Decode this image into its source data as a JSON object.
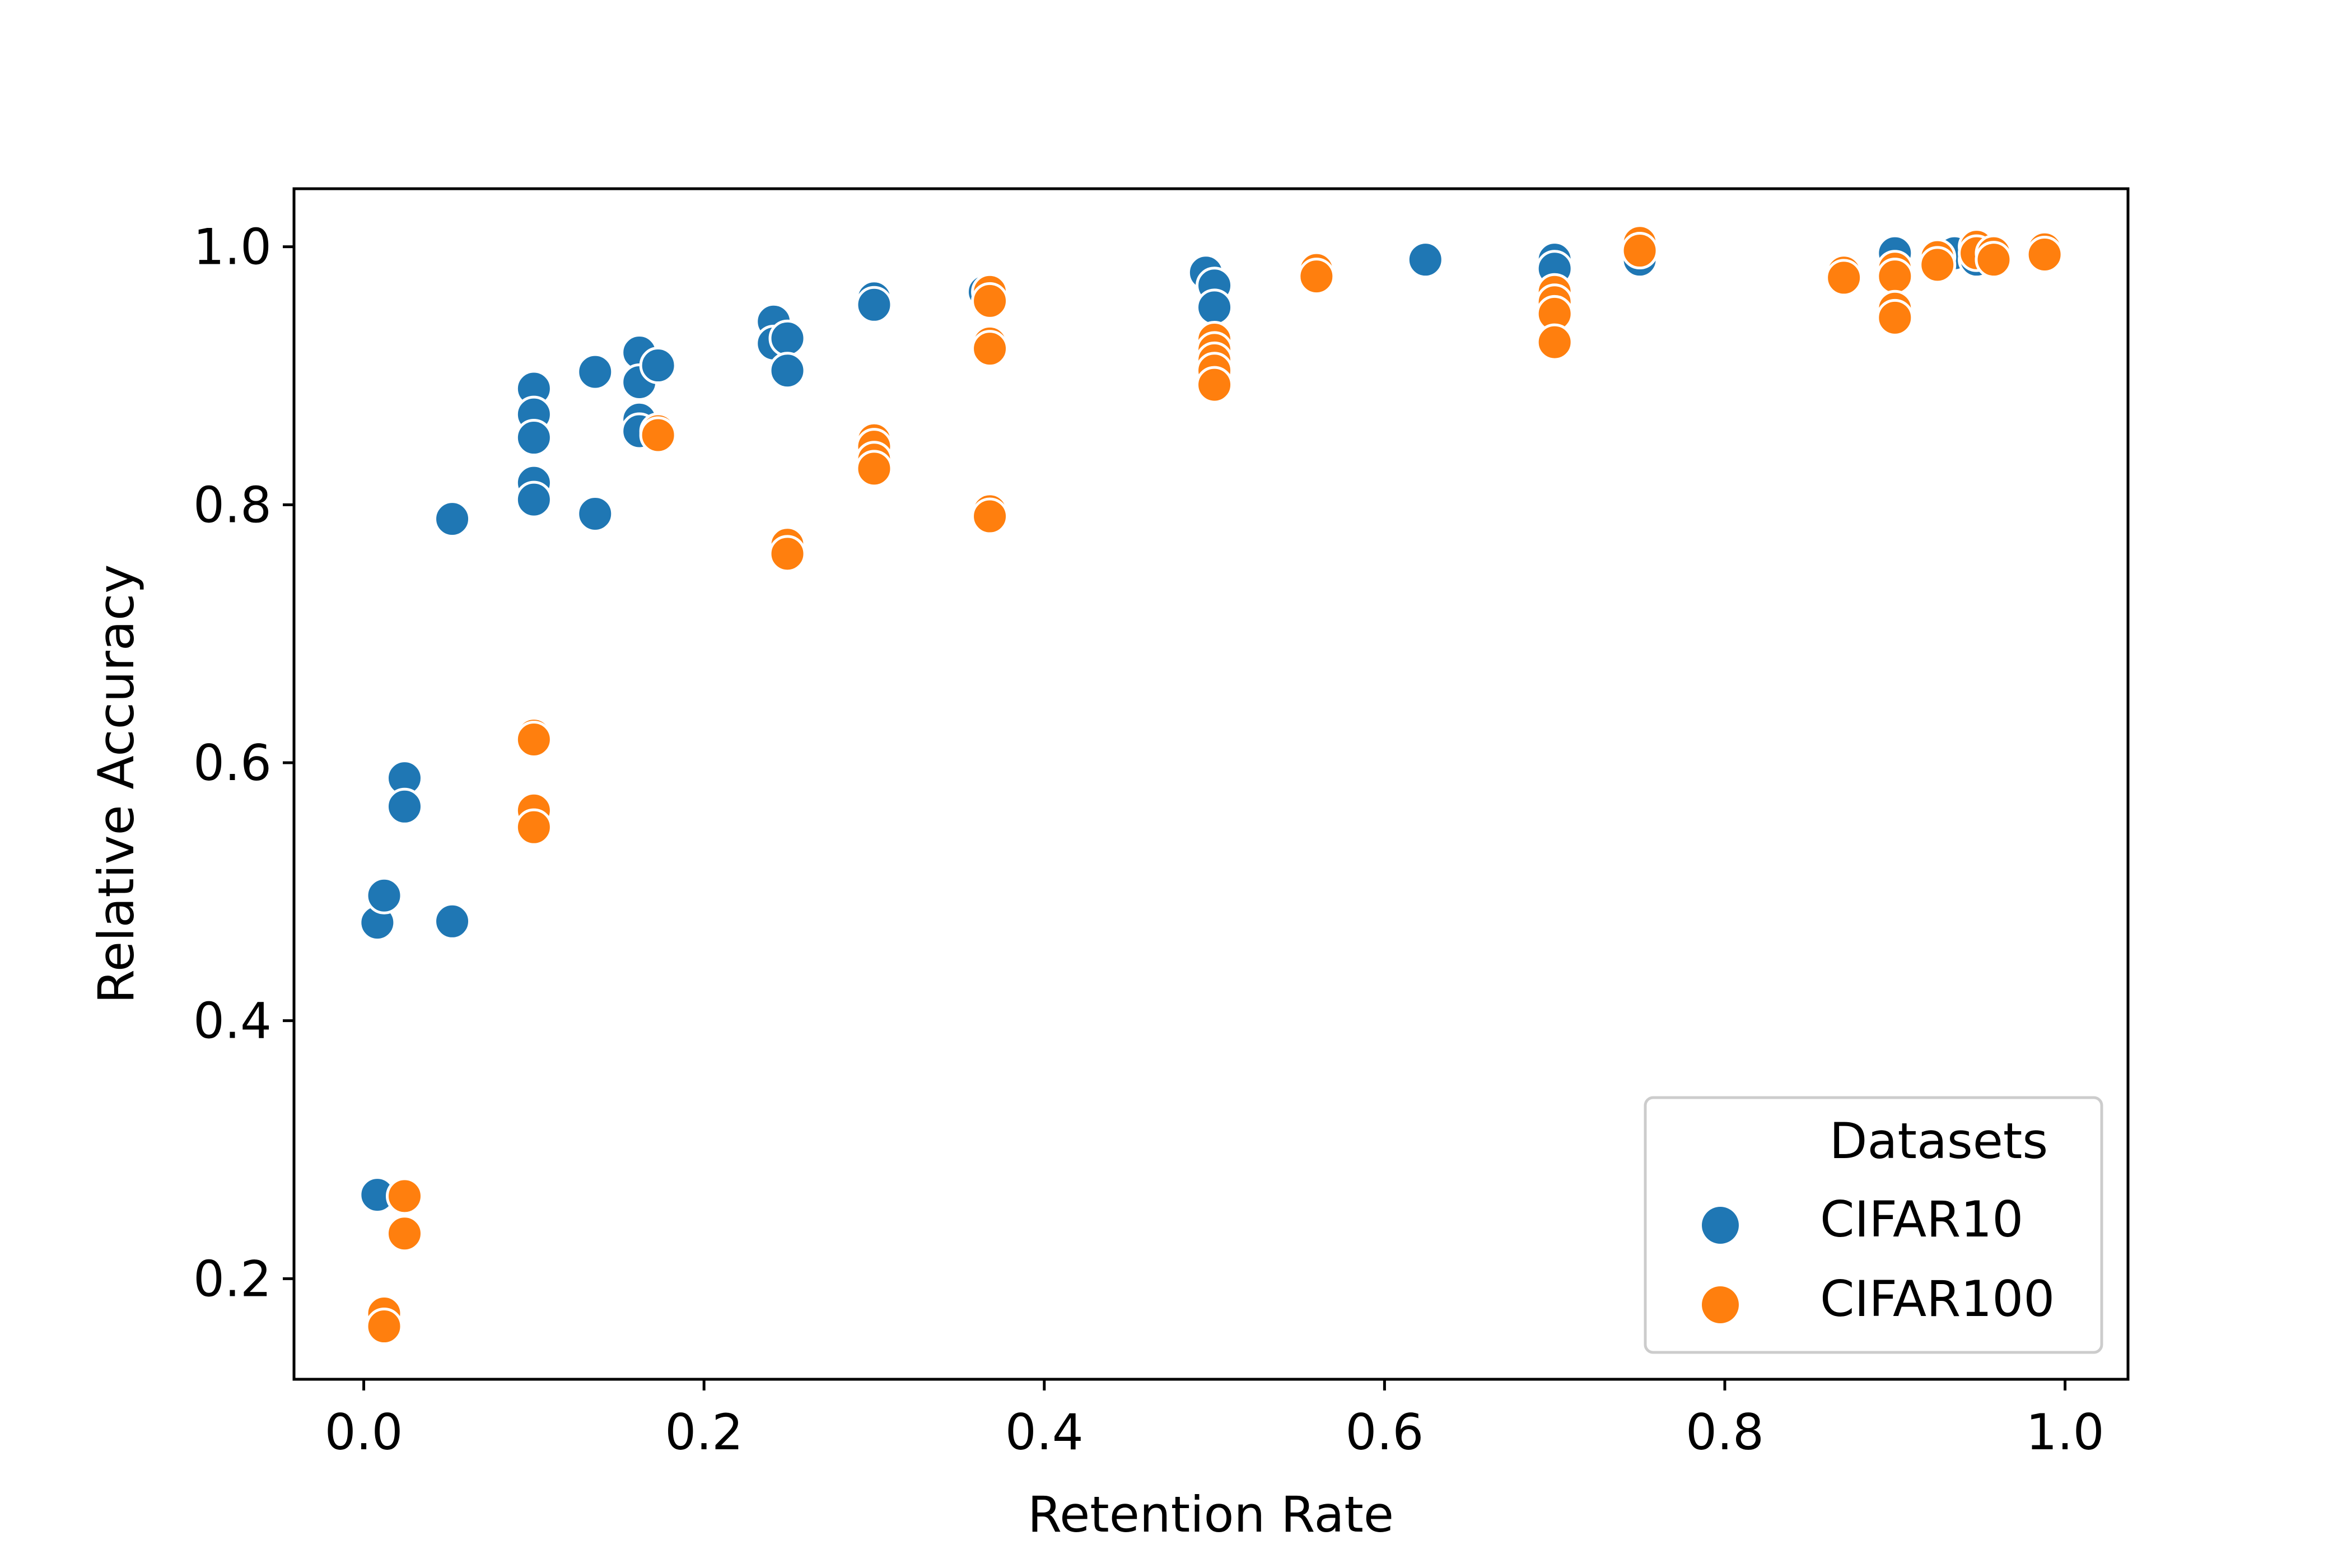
{
  "chart_data": {
    "type": "scatter",
    "title": "",
    "xlabel": "Retention Rate",
    "ylabel": "Relative Accuracy",
    "xlim": [
      -0.041,
      1.037
    ],
    "ylim": [
      0.122,
      1.045
    ],
    "xticks": [
      0.0,
      0.2,
      0.4,
      0.6,
      0.8,
      1.0
    ],
    "xtick_labels": [
      "0.0",
      "0.2",
      "0.4",
      "0.6",
      "0.8",
      "1.0"
    ],
    "yticks": [
      0.2,
      0.4,
      0.6,
      0.8,
      1.0
    ],
    "ytick_labels": [
      "0.2",
      "0.4",
      "0.6",
      "0.8",
      "1.0"
    ],
    "grid": false,
    "legend": {
      "title": "Datasets",
      "position": "bottom-right"
    },
    "series": [
      {
        "name": "CIFAR10",
        "color": "#1f77b4",
        "points": [
          [
            0.008,
            0.476
          ],
          [
            0.008,
            0.265
          ],
          [
            0.012,
            0.497
          ],
          [
            0.024,
            0.588
          ],
          [
            0.024,
            0.566
          ],
          [
            0.052,
            0.789
          ],
          [
            0.052,
            0.477
          ],
          [
            0.1,
            0.89
          ],
          [
            0.1,
            0.87
          ],
          [
            0.1,
            0.852
          ],
          [
            0.1,
            0.817
          ],
          [
            0.1,
            0.804
          ],
          [
            0.136,
            0.903
          ],
          [
            0.136,
            0.793
          ],
          [
            0.162,
            0.918
          ],
          [
            0.162,
            0.895
          ],
          [
            0.162,
            0.866
          ],
          [
            0.162,
            0.857
          ],
          [
            0.173,
            0.908
          ],
          [
            0.241,
            0.942
          ],
          [
            0.241,
            0.925
          ],
          [
            0.249,
            0.929
          ],
          [
            0.249,
            0.904
          ],
          [
            0.3,
            0.96
          ],
          [
            0.3,
            0.955
          ],
          [
            0.365,
            0.965
          ],
          [
            0.495,
            0.98
          ],
          [
            0.5,
            0.97
          ],
          [
            0.5,
            0.953
          ],
          [
            0.624,
            0.99
          ],
          [
            0.7,
            0.99
          ],
          [
            0.7,
            0.983
          ],
          [
            0.75,
            0.99
          ],
          [
            0.9,
            0.995
          ],
          [
            0.935,
            0.995
          ],
          [
            0.948,
            0.99
          ]
        ]
      },
      {
        "name": "CIFAR100",
        "color": "#ff7f0e",
        "points": [
          [
            0.012,
            0.173
          ],
          [
            0.012,
            0.163
          ],
          [
            0.024,
            0.264
          ],
          [
            0.024,
            0.235
          ],
          [
            0.1,
            0.621
          ],
          [
            0.1,
            0.618
          ],
          [
            0.1,
            0.563
          ],
          [
            0.1,
            0.55
          ],
          [
            0.173,
            0.857
          ],
          [
            0.173,
            0.854
          ],
          [
            0.249,
            0.769
          ],
          [
            0.249,
            0.762
          ],
          [
            0.3,
            0.85
          ],
          [
            0.3,
            0.845
          ],
          [
            0.3,
            0.835
          ],
          [
            0.3,
            0.828
          ],
          [
            0.368,
            0.965
          ],
          [
            0.368,
            0.958
          ],
          [
            0.368,
            0.925
          ],
          [
            0.368,
            0.921
          ],
          [
            0.368,
            0.795
          ],
          [
            0.368,
            0.791
          ],
          [
            0.5,
            0.928
          ],
          [
            0.5,
            0.92
          ],
          [
            0.5,
            0.912
          ],
          [
            0.5,
            0.904
          ],
          [
            0.5,
            0.893
          ],
          [
            0.56,
            0.982
          ],
          [
            0.56,
            0.977
          ],
          [
            0.7,
            0.965
          ],
          [
            0.7,
            0.957
          ],
          [
            0.7,
            0.948
          ],
          [
            0.7,
            0.926
          ],
          [
            0.75,
            1.003
          ],
          [
            0.75,
            0.997
          ],
          [
            0.87,
            0.98
          ],
          [
            0.87,
            0.976
          ],
          [
            0.9,
            0.983
          ],
          [
            0.9,
            0.977
          ],
          [
            0.9,
            0.952
          ],
          [
            0.9,
            0.945
          ],
          [
            0.925,
            0.992
          ],
          [
            0.925,
            0.986
          ],
          [
            0.948,
            1.0
          ],
          [
            0.948,
            0.995
          ],
          [
            0.958,
            0.995
          ],
          [
            0.958,
            0.99
          ],
          [
            0.988,
            0.998
          ],
          [
            0.988,
            0.994
          ]
        ]
      }
    ]
  }
}
